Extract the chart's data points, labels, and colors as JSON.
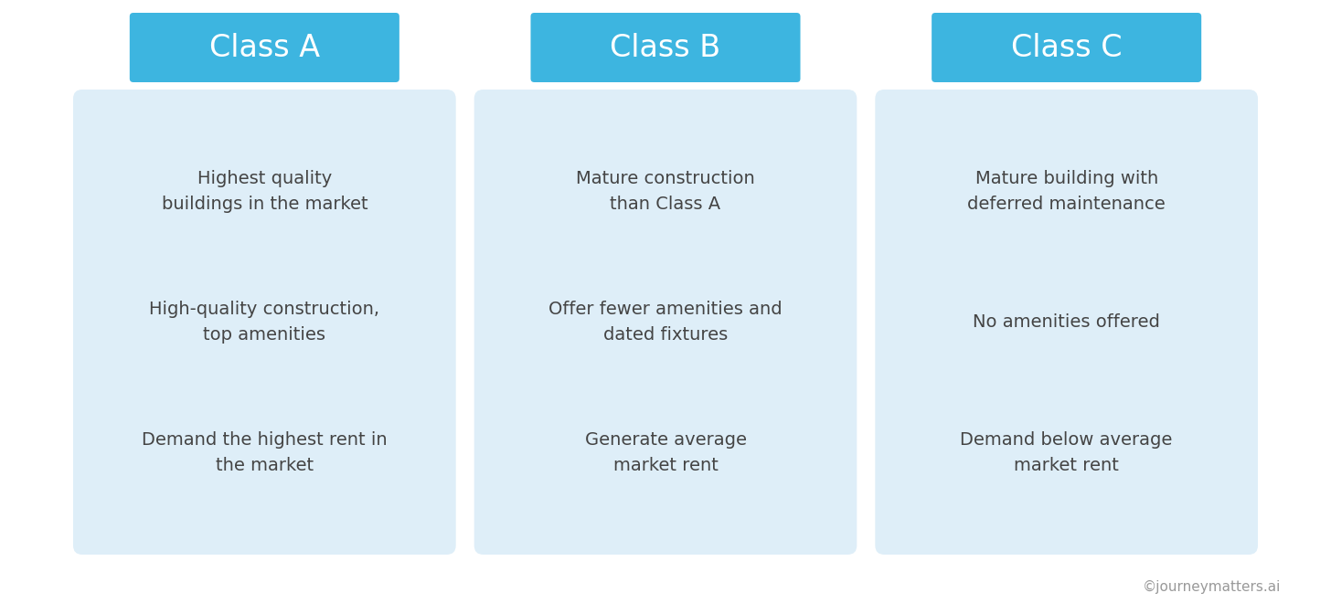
{
  "background_color": "#ffffff",
  "header_bg_color": "#3db5e0",
  "card_bg_color": "#deeef8",
  "header_text_color": "#ffffff",
  "body_text_color": "#444444",
  "watermark_color": "#999999",
  "classes": [
    "Class A",
    "Class B",
    "Class C"
  ],
  "bullets": [
    [
      "Highest quality\nbuildings in the market",
      "High-quality construction,\ntop amenities",
      "Demand the highest rent in\nthe market"
    ],
    [
      "Mature construction\nthan Class A",
      "Offer fewer amenities and\ndated fixtures",
      "Generate average\nmarket rent"
    ],
    [
      "Mature building with\ndeferred maintenance",
      "No amenities offered",
      "Demand below average\nmarket rent"
    ]
  ],
  "watermark": "©journeymatters.ai",
  "header_fontsize": 24,
  "body_fontsize": 14,
  "watermark_fontsize": 11,
  "fig_width": 14.56,
  "fig_height": 6.72,
  "dpi": 100
}
